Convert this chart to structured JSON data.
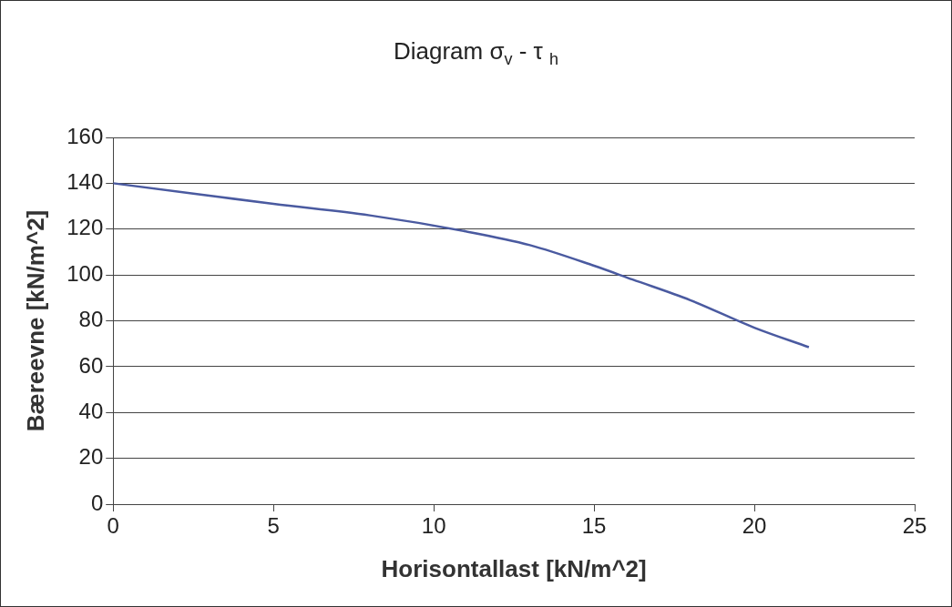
{
  "chart_data": {
    "type": "line",
    "title": "Diagram σ$_{v}$ - τ $_{h}$",
    "xlabel": "Horisontallast [kN/m^2]",
    "ylabel": "Bæreevne [kN/m^2]",
    "series": [
      {
        "color": "#4a5aa0",
        "x": [
          0,
          2.5,
          5,
          8,
          11,
          13,
          15,
          16.2,
          18,
          20,
          21.7
        ],
        "values": [
          140,
          135.5,
          131,
          126,
          119,
          113,
          104,
          98,
          89,
          77,
          68.5
        ]
      }
    ],
    "xlim": [
      0,
      25
    ],
    "xticks": [
      0,
      5,
      10,
      15,
      20,
      25
    ],
    "ylim": [
      0,
      160
    ],
    "yticks": [
      0,
      20,
      40,
      60,
      80,
      100,
      120,
      140,
      160
    ],
    "grid": "y",
    "legend": false,
    "marker": "none",
    "line_style": "solid"
  }
}
